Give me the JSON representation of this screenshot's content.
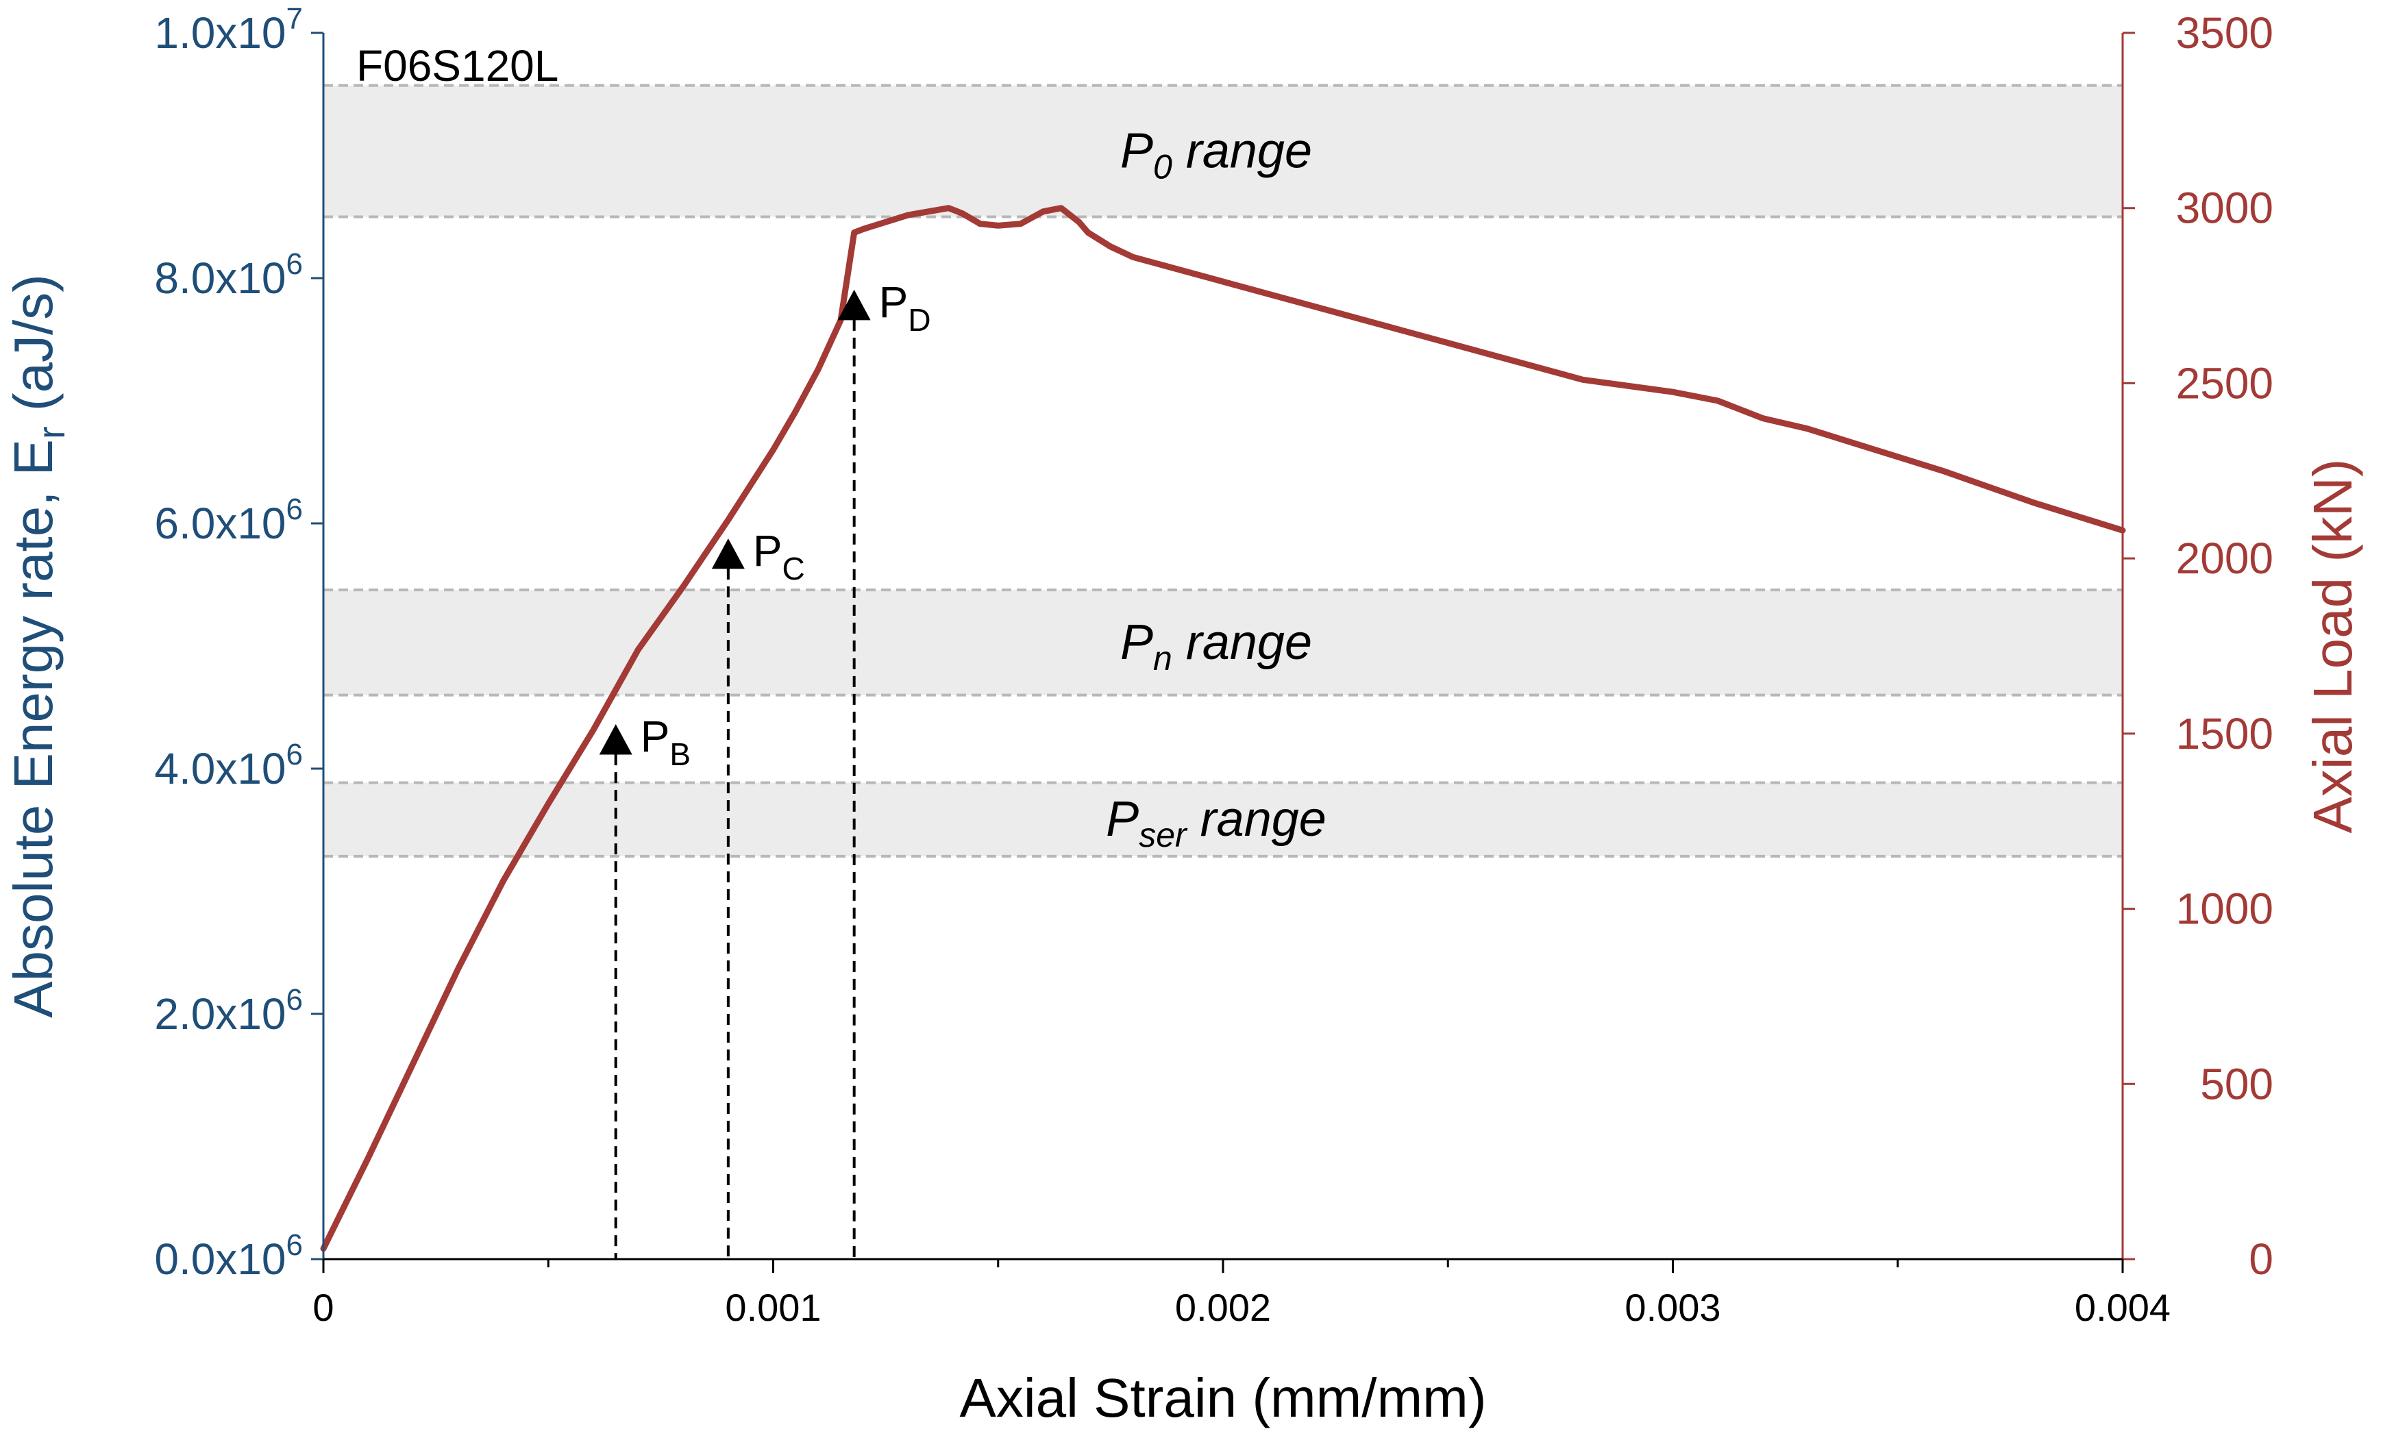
{
  "chart_data": {
    "type": "line",
    "specimen_label": "F06S120L",
    "xlabel": "Axial Strain (mm/mm)",
    "xlim": [
      0,
      0.004
    ],
    "x_ticks": [
      0,
      0.001,
      0.002,
      0.003,
      0.004
    ],
    "x_tick_labels": [
      "0",
      "0.001",
      "0.002",
      "0.003",
      "0.004"
    ],
    "ylabel_left": {
      "main": "Absolute Energy rate,  E",
      "sub": "r",
      "unit": " (aJ/s)"
    },
    "ylim_left": [
      0,
      10000000
    ],
    "y_left_ticks": [
      {
        "value": 0,
        "mantissa": "0.0x10",
        "exp": "6"
      },
      {
        "value": 2000000,
        "mantissa": "2.0x10",
        "exp": "6"
      },
      {
        "value": 4000000,
        "mantissa": "4.0x10",
        "exp": "6"
      },
      {
        "value": 6000000,
        "mantissa": "6.0x10",
        "exp": "6"
      },
      {
        "value": 8000000,
        "mantissa": "8.0x10",
        "exp": "6"
      },
      {
        "value": 10000000,
        "mantissa": "1.0x10",
        "exp": "7"
      }
    ],
    "ylabel_right": "Axial Load (kN)",
    "ylim_right": [
      0,
      3500
    ],
    "y_right_ticks": [
      0,
      500,
      1000,
      1500,
      2000,
      2500,
      3000,
      3500
    ],
    "y_right_tick_labels": [
      "0",
      "500",
      "1000",
      "1500",
      "2000",
      "2500",
      "3000",
      "3500"
    ],
    "bands": [
      {
        "name": "P0",
        "label_main": "P",
        "label_sub": "0",
        "label_rest": " range",
        "load_range": [
          2975,
          3350
        ]
      },
      {
        "name": "Pn",
        "label_main": "P",
        "label_sub": "n",
        "label_rest": " range",
        "load_range": [
          1610,
          1910
        ]
      },
      {
        "name": "Pser",
        "label_main": "P",
        "label_sub": "ser",
        "label_rest": " range",
        "load_range": [
          1150,
          1360
        ]
      }
    ],
    "series": [
      {
        "name": "Axial Load",
        "axis": "right",
        "color": "#a33a36",
        "points": [
          [
            0,
            30
          ],
          [
            0.0001,
            290
          ],
          [
            0.0002,
            560
          ],
          [
            0.0003,
            830
          ],
          [
            0.0004,
            1080
          ],
          [
            0.0005,
            1300
          ],
          [
            0.0006,
            1510
          ],
          [
            0.0007,
            1740
          ],
          [
            0.0008,
            1920
          ],
          [
            0.0009,
            2110
          ],
          [
            0.001,
            2310
          ],
          [
            0.00105,
            2420
          ],
          [
            0.0011,
            2540
          ],
          [
            0.00115,
            2680
          ],
          [
            0.00118,
            2930
          ],
          [
            0.0012,
            2940
          ],
          [
            0.0013,
            2980
          ],
          [
            0.00139,
            3000
          ],
          [
            0.00142,
            2985
          ],
          [
            0.00146,
            2955
          ],
          [
            0.0015,
            2950
          ],
          [
            0.00155,
            2955
          ],
          [
            0.0016,
            2990
          ],
          [
            0.00164,
            3000
          ],
          [
            0.00168,
            2960
          ],
          [
            0.0017,
            2930
          ],
          [
            0.00175,
            2890
          ],
          [
            0.0018,
            2860
          ],
          [
            0.002,
            2790
          ],
          [
            0.0022,
            2720
          ],
          [
            0.0024,
            2650
          ],
          [
            0.0026,
            2580
          ],
          [
            0.0028,
            2510
          ],
          [
            0.003,
            2475
          ],
          [
            0.0031,
            2450
          ],
          [
            0.0032,
            2400
          ],
          [
            0.0033,
            2370
          ],
          [
            0.0034,
            2330
          ],
          [
            0.0036,
            2250
          ],
          [
            0.0038,
            2160
          ],
          [
            0.004,
            2080
          ]
        ]
      }
    ],
    "markers": [
      {
        "name": "PB",
        "label_main": "P",
        "label_sub": "B",
        "strain": 0.00065,
        "load": 1480
      },
      {
        "name": "PC",
        "label_main": "P",
        "label_sub": "C",
        "strain": 0.0009,
        "load": 2010
      },
      {
        "name": "PD",
        "label_main": "P",
        "label_sub": "D",
        "strain": 0.00118,
        "load": 2720
      }
    ],
    "colors": {
      "left_axis": "#1f4e79",
      "right_axis": "#a33a36",
      "band_fill": "#ececec",
      "band_edge": "#b8b8b8",
      "marker": "#000000"
    }
  }
}
